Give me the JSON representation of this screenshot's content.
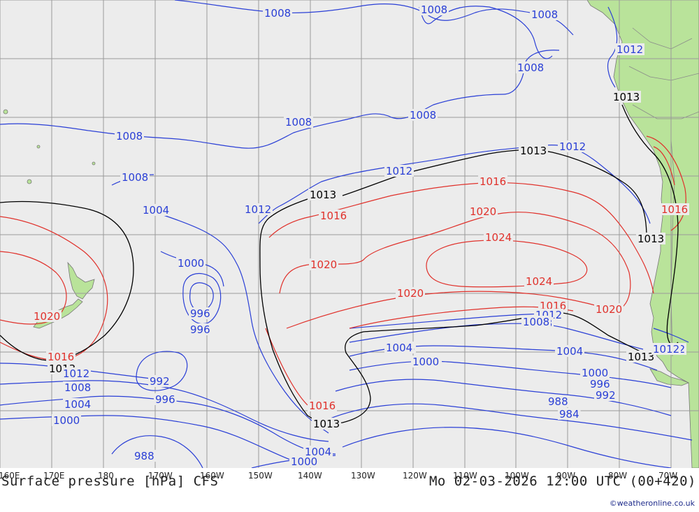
{
  "map": {
    "title": "Surface pressure [hPa] CFS",
    "datetime": "Mo 02-03-2026 12:00 UTC (00+420)",
    "credit": "©weatheronline.co.uk",
    "colors": {
      "ocean": "#ececec",
      "land": "#b9e39a",
      "grid": "#9a9a9a",
      "low": "#2a3fd6",
      "high": "#e0312b",
      "ref": "#000000"
    },
    "longitude_labels": [
      "160E",
      "170E",
      "180",
      "170W",
      "160W",
      "150W",
      "140W",
      "130W",
      "120W",
      "110W",
      "100W",
      "90W",
      "80W",
      "70W"
    ],
    "contour_labels": [
      {
        "text": "1008",
        "color": "low"
      },
      {
        "text": "1008",
        "color": "low"
      },
      {
        "text": "1008",
        "color": "low"
      },
      {
        "text": "1008",
        "color": "low"
      },
      {
        "text": "1008",
        "color": "low"
      },
      {
        "text": "1008",
        "color": "low"
      },
      {
        "text": "1008",
        "color": "low"
      },
      {
        "text": "1008",
        "color": "low"
      },
      {
        "text": "1012",
        "color": "low"
      },
      {
        "text": "1013",
        "color": "ref"
      },
      {
        "text": "1012",
        "color": "low"
      },
      {
        "text": "1012",
        "color": "low"
      },
      {
        "text": "1013",
        "color": "ref"
      },
      {
        "text": "1013",
        "color": "ref"
      },
      {
        "text": "1016",
        "color": "high"
      },
      {
        "text": "1016",
        "color": "high"
      },
      {
        "text": "1020",
        "color": "high"
      },
      {
        "text": "1020",
        "color": "high"
      },
      {
        "text": "1024",
        "color": "high"
      },
      {
        "text": "1024",
        "color": "high"
      },
      {
        "text": "1020",
        "color": "high"
      },
      {
        "text": "1020",
        "color": "high"
      },
      {
        "text": "1016",
        "color": "high"
      },
      {
        "text": "1012",
        "color": "low"
      },
      {
        "text": "1008",
        "color": "low"
      },
      {
        "text": "1004",
        "color": "low"
      },
      {
        "text": "1000",
        "color": "low"
      },
      {
        "text": "996",
        "color": "low"
      },
      {
        "text": "996",
        "color": "low"
      },
      {
        "text": "1004",
        "color": "low"
      },
      {
        "text": "1000",
        "color": "low"
      },
      {
        "text": "1013",
        "color": "ref"
      },
      {
        "text": "1016",
        "color": "high"
      },
      {
        "text": "1020",
        "color": "high"
      },
      {
        "text": "1016",
        "color": "high"
      },
      {
        "text": "1013",
        "color": "ref"
      },
      {
        "text": "1012",
        "color": "low"
      },
      {
        "text": "1008",
        "color": "low"
      },
      {
        "text": "1004",
        "color": "low"
      },
      {
        "text": "1000",
        "color": "low"
      },
      {
        "text": "992",
        "color": "low"
      },
      {
        "text": "996",
        "color": "low"
      },
      {
        "text": "988",
        "color": "low"
      },
      {
        "text": "1004",
        "color": "low"
      },
      {
        "text": "1000",
        "color": "low"
      },
      {
        "text": "1016",
        "color": "high"
      },
      {
        "text": "1013",
        "color": "ref"
      },
      {
        "text": "1012",
        "color": "low"
      },
      {
        "text": "1008",
        "color": "low"
      },
      {
        "text": "1004",
        "color": "low"
      },
      {
        "text": "1000",
        "color": "low"
      },
      {
        "text": "1004",
        "color": "low"
      },
      {
        "text": "1000",
        "color": "low"
      },
      {
        "text": "996",
        "color": "low"
      },
      {
        "text": "992",
        "color": "low"
      },
      {
        "text": "988",
        "color": "low"
      },
      {
        "text": "984",
        "color": "low"
      },
      {
        "text": "1013",
        "color": "ref"
      },
      {
        "text": "1012",
        "color": "low"
      },
      {
        "text": "1013",
        "color": "ref"
      },
      {
        "text": "1016",
        "color": "high"
      },
      {
        "text": "1012",
        "color": "low"
      }
    ]
  }
}
